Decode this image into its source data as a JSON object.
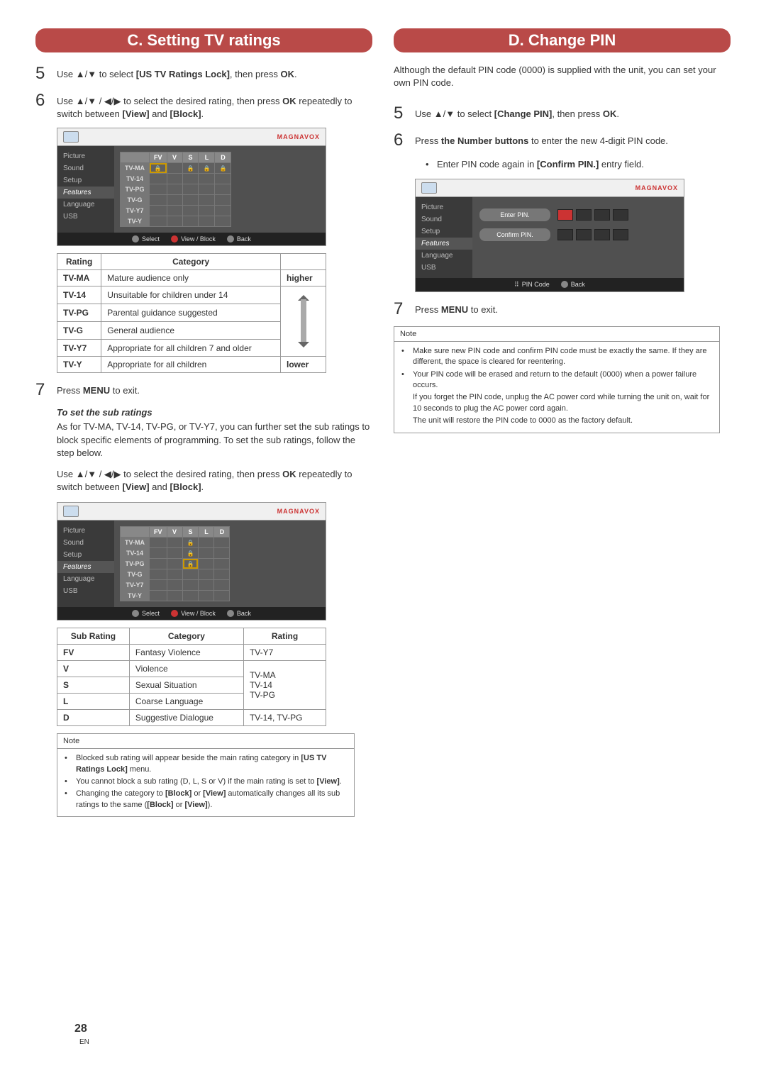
{
  "page": {
    "number": "28",
    "lang": "EN"
  },
  "left": {
    "header": "C. Setting TV ratings",
    "step5": {
      "num": "5",
      "text_pre": "Use ",
      "arrows": "▲/▼",
      "text_mid": " to select ",
      "bold1": "[US TV Ratings Lock]",
      "text_post": ", then press ",
      "bold2": "OK",
      "period": "."
    },
    "step6": {
      "num": "6",
      "text_pre": "Use ",
      "arrows": "▲/▼ / ◀/▶",
      "text_mid": " to select the desired rating, then press ",
      "bold1": "OK",
      "text_post": " repeatedly to switch between ",
      "bold2": "[View]",
      "and": " and ",
      "bold3": "[Block]",
      "period": "."
    },
    "screenshot1": {
      "brand": "MAGNAVOX",
      "menu": [
        "Picture",
        "Sound",
        "Setup",
        "Features",
        "Language",
        "USB"
      ],
      "menu_selected_index": 3,
      "cols": [
        "",
        "FV",
        "V",
        "S",
        "L",
        "D"
      ],
      "rows": [
        "TV-MA",
        "TV-14",
        "TV-PG",
        "TV-G",
        "TV-Y7",
        "TV-Y"
      ],
      "locks": {
        "0": [
          0,
          2,
          3,
          4
        ],
        "1": []
      },
      "highlight": [
        0,
        0
      ],
      "footer": {
        "select": "Select",
        "viewblock": "View / Block",
        "back_small": "BACK",
        "back": "Back"
      }
    },
    "ratings_table": {
      "headers": [
        "Rating",
        "Category"
      ],
      "arrow_top": "higher",
      "arrow_bottom": "lower",
      "rows": [
        {
          "rating": "TV-MA",
          "cat": "Mature audience only"
        },
        {
          "rating": "TV-14",
          "cat": "Unsuitable for children under 14"
        },
        {
          "rating": "TV-PG",
          "cat": "Parental guidance suggested"
        },
        {
          "rating": "TV-G",
          "cat": "General audience"
        },
        {
          "rating": "TV-Y7",
          "cat": "Appropriate for all children 7 and older"
        },
        {
          "rating": "TV-Y",
          "cat": "Appropriate for all children"
        }
      ]
    },
    "step7": {
      "num": "7",
      "text_pre": "Press ",
      "bold": "MENU",
      "text_post": " to exit."
    },
    "sub_title": "To set the sub ratings",
    "sub_body": "As for TV-MA, TV-14, TV-PG, or TV-Y7, you can further set the sub ratings to block specific elements of programming. To set the sub ratings, follow the step below.",
    "sub_instr": {
      "text_pre": "Use ",
      "arrows": "▲/▼ / ◀/▶",
      "text_mid": " to select the desired rating, then press ",
      "bold1": "OK",
      "text_post": " repeatedly to switch between ",
      "bold2": "[View]",
      "and": " and ",
      "bold3": "[Block]",
      "period": "."
    },
    "screenshot2": {
      "brand": "MAGNAVOX",
      "menu": [
        "Picture",
        "Sound",
        "Setup",
        "Features",
        "Language",
        "USB"
      ],
      "menu_selected_index": 3,
      "cols": [
        "",
        "FV",
        "V",
        "S",
        "L",
        "D"
      ],
      "rows": [
        "TV-MA",
        "TV-14",
        "TV-PG",
        "TV-G",
        "TV-Y7",
        "TV-Y"
      ],
      "locks": {
        "0": [
          2
        ],
        "1": [
          2
        ],
        "2": [
          2
        ]
      },
      "highlight": [
        2,
        2
      ],
      "footer": {
        "select": "Select",
        "viewblock": "View / Block",
        "back_small": "BACK",
        "back": "Back"
      }
    },
    "sub_table": {
      "headers": [
        "Sub Rating",
        "Category",
        "Rating"
      ],
      "rows": [
        {
          "sr": "FV",
          "cat": "Fantasy Violence",
          "rating": "TV-Y7"
        },
        {
          "sr": "V",
          "cat": "Violence",
          "rating": "TV-MA\nTV-14\nTV-PG"
        },
        {
          "sr": "S",
          "cat": "Sexual Situation",
          "rating": ""
        },
        {
          "sr": "L",
          "cat": "Coarse Language",
          "rating": ""
        },
        {
          "sr": "D",
          "cat": "Suggestive Dialogue",
          "rating": "TV-14, TV-PG"
        }
      ]
    },
    "note1": {
      "title": "Note",
      "items": [
        {
          "pre": "Blocked sub rating will appear beside the main rating category in ",
          "b": "[US TV Ratings Lock]",
          "post": " menu."
        },
        {
          "pre": "You cannot block a sub rating (D, L, S or V) if the main rating is set to ",
          "b": "[View]",
          "post": "."
        },
        {
          "pre": "Changing the category to ",
          "b": "[Block]",
          "mid": " or ",
          "b2": "[View]",
          "post": " automatically changes all its sub ratings to the same (",
          "b3": "[Block]",
          "mid2": " or ",
          "b4": "[View]",
          "post2": ")."
        }
      ]
    }
  },
  "right": {
    "header": "D. Change PIN",
    "intro": "Although the default PIN code (0000) is supplied with the unit, you can set your own PIN code.",
    "step5": {
      "num": "5",
      "text_pre": "Use ",
      "arrows": "▲/▼",
      "text_mid": " to select ",
      "bold1": "[Change PIN]",
      "text_post": ", then press ",
      "bold2": "OK",
      "period": "."
    },
    "step6": {
      "num": "6",
      "text_pre": "Press ",
      "bold1": "the Number buttons",
      "text_post": " to enter the new 4-digit PIN code."
    },
    "bullet6": {
      "pre": "Enter PIN code again in ",
      "b": "[Confirm PIN.]",
      "post": " entry field."
    },
    "pin_screen": {
      "brand": "MAGNAVOX",
      "menu": [
        "Picture",
        "Sound",
        "Setup",
        "Features",
        "Language",
        "USB"
      ],
      "menu_selected_index": 3,
      "enter_label": "Enter PIN.",
      "confirm_label": "Confirm PIN.",
      "footer": {
        "pincode": "PIN Code",
        "back_small": "BACK",
        "back": "Back"
      }
    },
    "step7": {
      "num": "7",
      "text_pre": "Press ",
      "bold": "MENU",
      "text_post": " to exit."
    },
    "note2": {
      "title": "Note",
      "items": [
        "Make sure new PIN code and confirm PIN code must be exactly the same. If they are different, the space is cleared for reentering.",
        "Your PIN code will be erased and return to the default (0000) when a power failure occurs.",
        "If you forget the PIN code, unplug the AC power cord while turning the unit on, wait for 10 seconds to plug the AC power cord again.",
        "The unit will restore the PIN code to 0000 as the factory default."
      ]
    }
  }
}
